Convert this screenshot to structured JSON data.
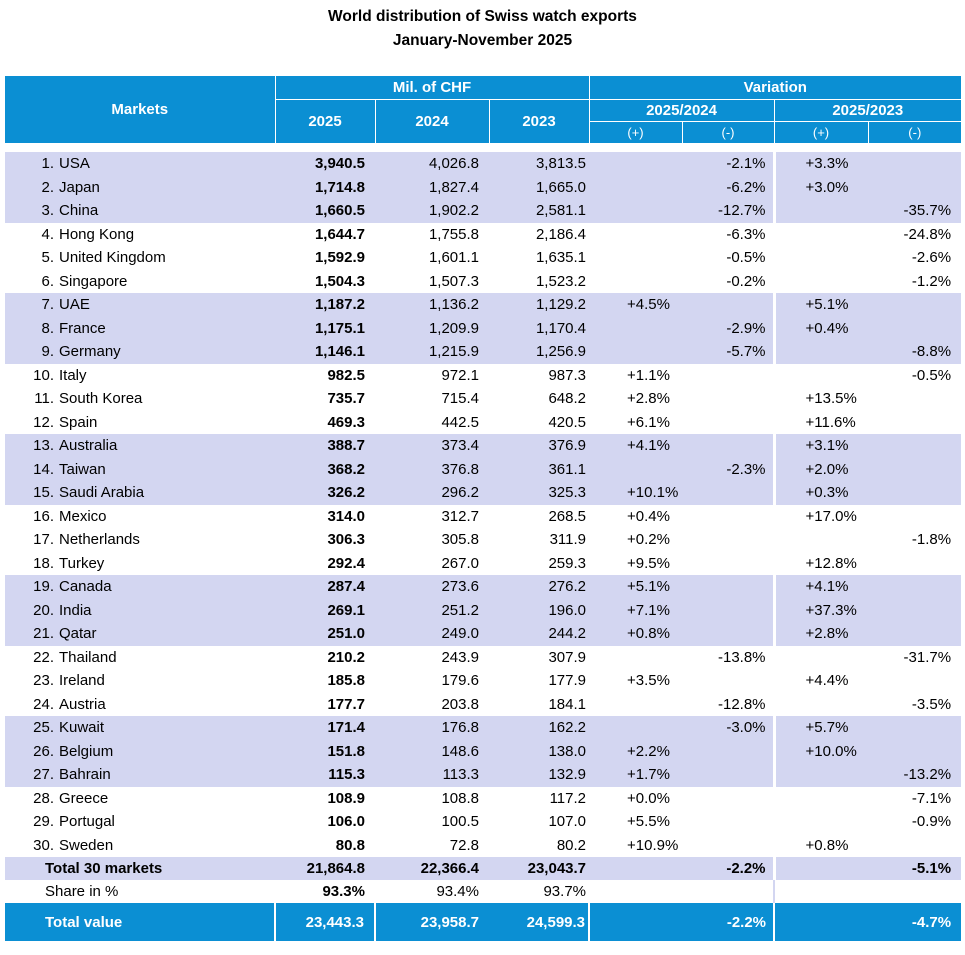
{
  "title": "World distribution of Swiss watch exports",
  "subtitle": "January-November 2025",
  "header": {
    "markets": "Markets",
    "mil_chf": "Mil. of CHF",
    "variation": "Variation",
    "y2025": "2025",
    "y2024": "2024",
    "y2023": "2023",
    "v1": "2025/2024",
    "v2": "2025/2023",
    "plus": "(+)",
    "minus": "(-)"
  },
  "rows": [
    {
      "rank": "1.",
      "market": "USA",
      "v2025": "3,940.5",
      "v2024": "4,026.8",
      "v2023": "3,813.5",
      "p1": "",
      "m1": "-2.1%",
      "p2": "+3.3%",
      "m2": ""
    },
    {
      "rank": "2.",
      "market": "Japan",
      "v2025": "1,714.8",
      "v2024": "1,827.4",
      "v2023": "1,665.0",
      "p1": "",
      "m1": "-6.2%",
      "p2": "+3.0%",
      "m2": ""
    },
    {
      "rank": "3.",
      "market": "China",
      "v2025": "1,660.5",
      "v2024": "1,902.2",
      "v2023": "2,581.1",
      "p1": "",
      "m1": "-12.7%",
      "p2": "",
      "m2": "-35.7%"
    },
    {
      "rank": "4.",
      "market": "Hong Kong",
      "v2025": "1,644.7",
      "v2024": "1,755.8",
      "v2023": "2,186.4",
      "p1": "",
      "m1": "-6.3%",
      "p2": "",
      "m2": "-24.8%"
    },
    {
      "rank": "5.",
      "market": "United Kingdom",
      "v2025": "1,592.9",
      "v2024": "1,601.1",
      "v2023": "1,635.1",
      "p1": "",
      "m1": "-0.5%",
      "p2": "",
      "m2": "-2.6%"
    },
    {
      "rank": "6.",
      "market": "Singapore",
      "v2025": "1,504.3",
      "v2024": "1,507.3",
      "v2023": "1,523.2",
      "p1": "",
      "m1": "-0.2%",
      "p2": "",
      "m2": "-1.2%"
    },
    {
      "rank": "7.",
      "market": "UAE",
      "v2025": "1,187.2",
      "v2024": "1,136.2",
      "v2023": "1,129.2",
      "p1": "+4.5%",
      "m1": "",
      "p2": "+5.1%",
      "m2": ""
    },
    {
      "rank": "8.",
      "market": "France",
      "v2025": "1,175.1",
      "v2024": "1,209.9",
      "v2023": "1,170.4",
      "p1": "",
      "m1": "-2.9%",
      "p2": "+0.4%",
      "m2": ""
    },
    {
      "rank": "9.",
      "market": "Germany",
      "v2025": "1,146.1",
      "v2024": "1,215.9",
      "v2023": "1,256.9",
      "p1": "",
      "m1": "-5.7%",
      "p2": "",
      "m2": "-8.8%"
    },
    {
      "rank": "10.",
      "market": "Italy",
      "v2025": "982.5",
      "v2024": "972.1",
      "v2023": "987.3",
      "p1": "+1.1%",
      "m1": "",
      "p2": "",
      "m2": "-0.5%"
    },
    {
      "rank": "11.",
      "market": "South Korea",
      "v2025": "735.7",
      "v2024": "715.4",
      "v2023": "648.2",
      "p1": "+2.8%",
      "m1": "",
      "p2": "+13.5%",
      "m2": ""
    },
    {
      "rank": "12.",
      "market": "Spain",
      "v2025": "469.3",
      "v2024": "442.5",
      "v2023": "420.5",
      "p1": "+6.1%",
      "m1": "",
      "p2": "+11.6%",
      "m2": ""
    },
    {
      "rank": "13.",
      "market": "Australia",
      "v2025": "388.7",
      "v2024": "373.4",
      "v2023": "376.9",
      "p1": "+4.1%",
      "m1": "",
      "p2": "+3.1%",
      "m2": ""
    },
    {
      "rank": "14.",
      "market": "Taiwan",
      "v2025": "368.2",
      "v2024": "376.8",
      "v2023": "361.1",
      "p1": "",
      "m1": "-2.3%",
      "p2": "+2.0%",
      "m2": ""
    },
    {
      "rank": "15.",
      "market": "Saudi Arabia",
      "v2025": "326.2",
      "v2024": "296.2",
      "v2023": "325.3",
      "p1": "+10.1%",
      "m1": "",
      "p2": "+0.3%",
      "m2": ""
    },
    {
      "rank": "16.",
      "market": "Mexico",
      "v2025": "314.0",
      "v2024": "312.7",
      "v2023": "268.5",
      "p1": "+0.4%",
      "m1": "",
      "p2": "+17.0%",
      "m2": ""
    },
    {
      "rank": "17.",
      "market": "Netherlands",
      "v2025": "306.3",
      "v2024": "305.8",
      "v2023": "311.9",
      "p1": "+0.2%",
      "m1": "",
      "p2": "",
      "m2": "-1.8%"
    },
    {
      "rank": "18.",
      "market": "Turkey",
      "v2025": "292.4",
      "v2024": "267.0",
      "v2023": "259.3",
      "p1": "+9.5%",
      "m1": "",
      "p2": "+12.8%",
      "m2": ""
    },
    {
      "rank": "19.",
      "market": "Canada",
      "v2025": "287.4",
      "v2024": "273.6",
      "v2023": "276.2",
      "p1": "+5.1%",
      "m1": "",
      "p2": "+4.1%",
      "m2": ""
    },
    {
      "rank": "20.",
      "market": "India",
      "v2025": "269.1",
      "v2024": "251.2",
      "v2023": "196.0",
      "p1": "+7.1%",
      "m1": "",
      "p2": "+37.3%",
      "m2": ""
    },
    {
      "rank": "21.",
      "market": "Qatar",
      "v2025": "251.0",
      "v2024": "249.0",
      "v2023": "244.2",
      "p1": "+0.8%",
      "m1": "",
      "p2": "+2.8%",
      "m2": ""
    },
    {
      "rank": "22.",
      "market": "Thailand",
      "v2025": "210.2",
      "v2024": "243.9",
      "v2023": "307.9",
      "p1": "",
      "m1": "-13.8%",
      "p2": "",
      "m2": "-31.7%"
    },
    {
      "rank": "23.",
      "market": "Ireland",
      "v2025": "185.8",
      "v2024": "179.6",
      "v2023": "177.9",
      "p1": "+3.5%",
      "m1": "",
      "p2": "+4.4%",
      "m2": ""
    },
    {
      "rank": "24.",
      "market": "Austria",
      "v2025": "177.7",
      "v2024": "203.8",
      "v2023": "184.1",
      "p1": "",
      "m1": "-12.8%",
      "p2": "",
      "m2": "-3.5%"
    },
    {
      "rank": "25.",
      "market": "Kuwait",
      "v2025": "171.4",
      "v2024": "176.8",
      "v2023": "162.2",
      "p1": "",
      "m1": "-3.0%",
      "p2": "+5.7%",
      "m2": ""
    },
    {
      "rank": "26.",
      "market": "Belgium",
      "v2025": "151.8",
      "v2024": "148.6",
      "v2023": "138.0",
      "p1": "+2.2%",
      "m1": "",
      "p2": "+10.0%",
      "m2": ""
    },
    {
      "rank": "27.",
      "market": "Bahrain",
      "v2025": "115.3",
      "v2024": "113.3",
      "v2023": "132.9",
      "p1": "+1.7%",
      "m1": "",
      "p2": "",
      "m2": "-13.2%"
    },
    {
      "rank": "28.",
      "market": "Greece",
      "v2025": "108.9",
      "v2024": "108.8",
      "v2023": "117.2",
      "p1": "+0.0%",
      "m1": "",
      "p2": "",
      "m2": "-7.1%"
    },
    {
      "rank": "29.",
      "market": "Portugal",
      "v2025": "106.0",
      "v2024": "100.5",
      "v2023": "107.0",
      "p1": "+5.5%",
      "m1": "",
      "p2": "",
      "m2": "-0.9%"
    },
    {
      "rank": "30.",
      "market": "Sweden",
      "v2025": "80.8",
      "v2024": "72.8",
      "v2023": "80.2",
      "p1": "+10.9%",
      "m1": "",
      "p2": "+0.8%",
      "m2": ""
    }
  ],
  "total30": {
    "label": "Total 30 markets",
    "v2025": "21,864.8",
    "v2024": "22,366.4",
    "v2023": "23,043.7",
    "m1": "-2.2%",
    "m2": "-5.1%"
  },
  "share": {
    "label": "Share in %",
    "v2025": "93.3%",
    "v2024": "93.4%",
    "v2023": "93.7%"
  },
  "total_value": {
    "label": "Total value",
    "v2025": "23,443.3",
    "v2024": "23,958.7",
    "v2023": "24,599.3",
    "m1": "-2.2%",
    "m2": "-4.7%"
  },
  "colors": {
    "header": "#0b8fd3",
    "band": "#d3d6f1"
  }
}
